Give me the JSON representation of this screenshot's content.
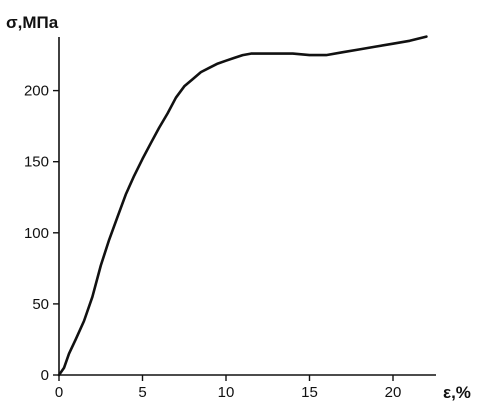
{
  "chart_data": {
    "type": "line",
    "xlabel": "ε,%",
    "ylabel": "σ,МПа",
    "xlim": [
      0,
      22.5
    ],
    "ylim": [
      0,
      240
    ],
    "x_ticks": [
      0,
      5,
      10,
      15,
      20
    ],
    "y_ticks": [
      0,
      50,
      100,
      150,
      200
    ],
    "x_tick_labels": [
      "0",
      "5",
      "10",
      "15",
      "20"
    ],
    "y_tick_labels": [
      "0",
      "50",
      "100",
      "150",
      "200"
    ],
    "grid": false,
    "series": [
      {
        "color": "#111111",
        "x": [
          0,
          0.3,
          0.6,
          1.0,
          1.5,
          2.0,
          2.5,
          3.0,
          3.5,
          4.0,
          4.5,
          5.0,
          5.5,
          6.0,
          6.5,
          7.0,
          7.5,
          8.0,
          8.5,
          9.0,
          9.5,
          10.0,
          10.5,
          11.0,
          11.5,
          12.0,
          13.0,
          14.0,
          15.0,
          16.0,
          17.0,
          18.0,
          19.0,
          20.0,
          21.0,
          22.0
        ],
        "y": [
          0,
          5,
          15,
          25,
          38,
          55,
          77,
          95,
          111,
          127,
          140,
          152,
          163,
          174,
          184,
          195,
          203,
          208,
          213,
          216,
          219,
          221,
          223,
          225,
          226,
          226,
          226,
          226,
          225,
          225,
          227,
          229,
          231,
          233,
          235,
          238
        ]
      }
    ]
  }
}
